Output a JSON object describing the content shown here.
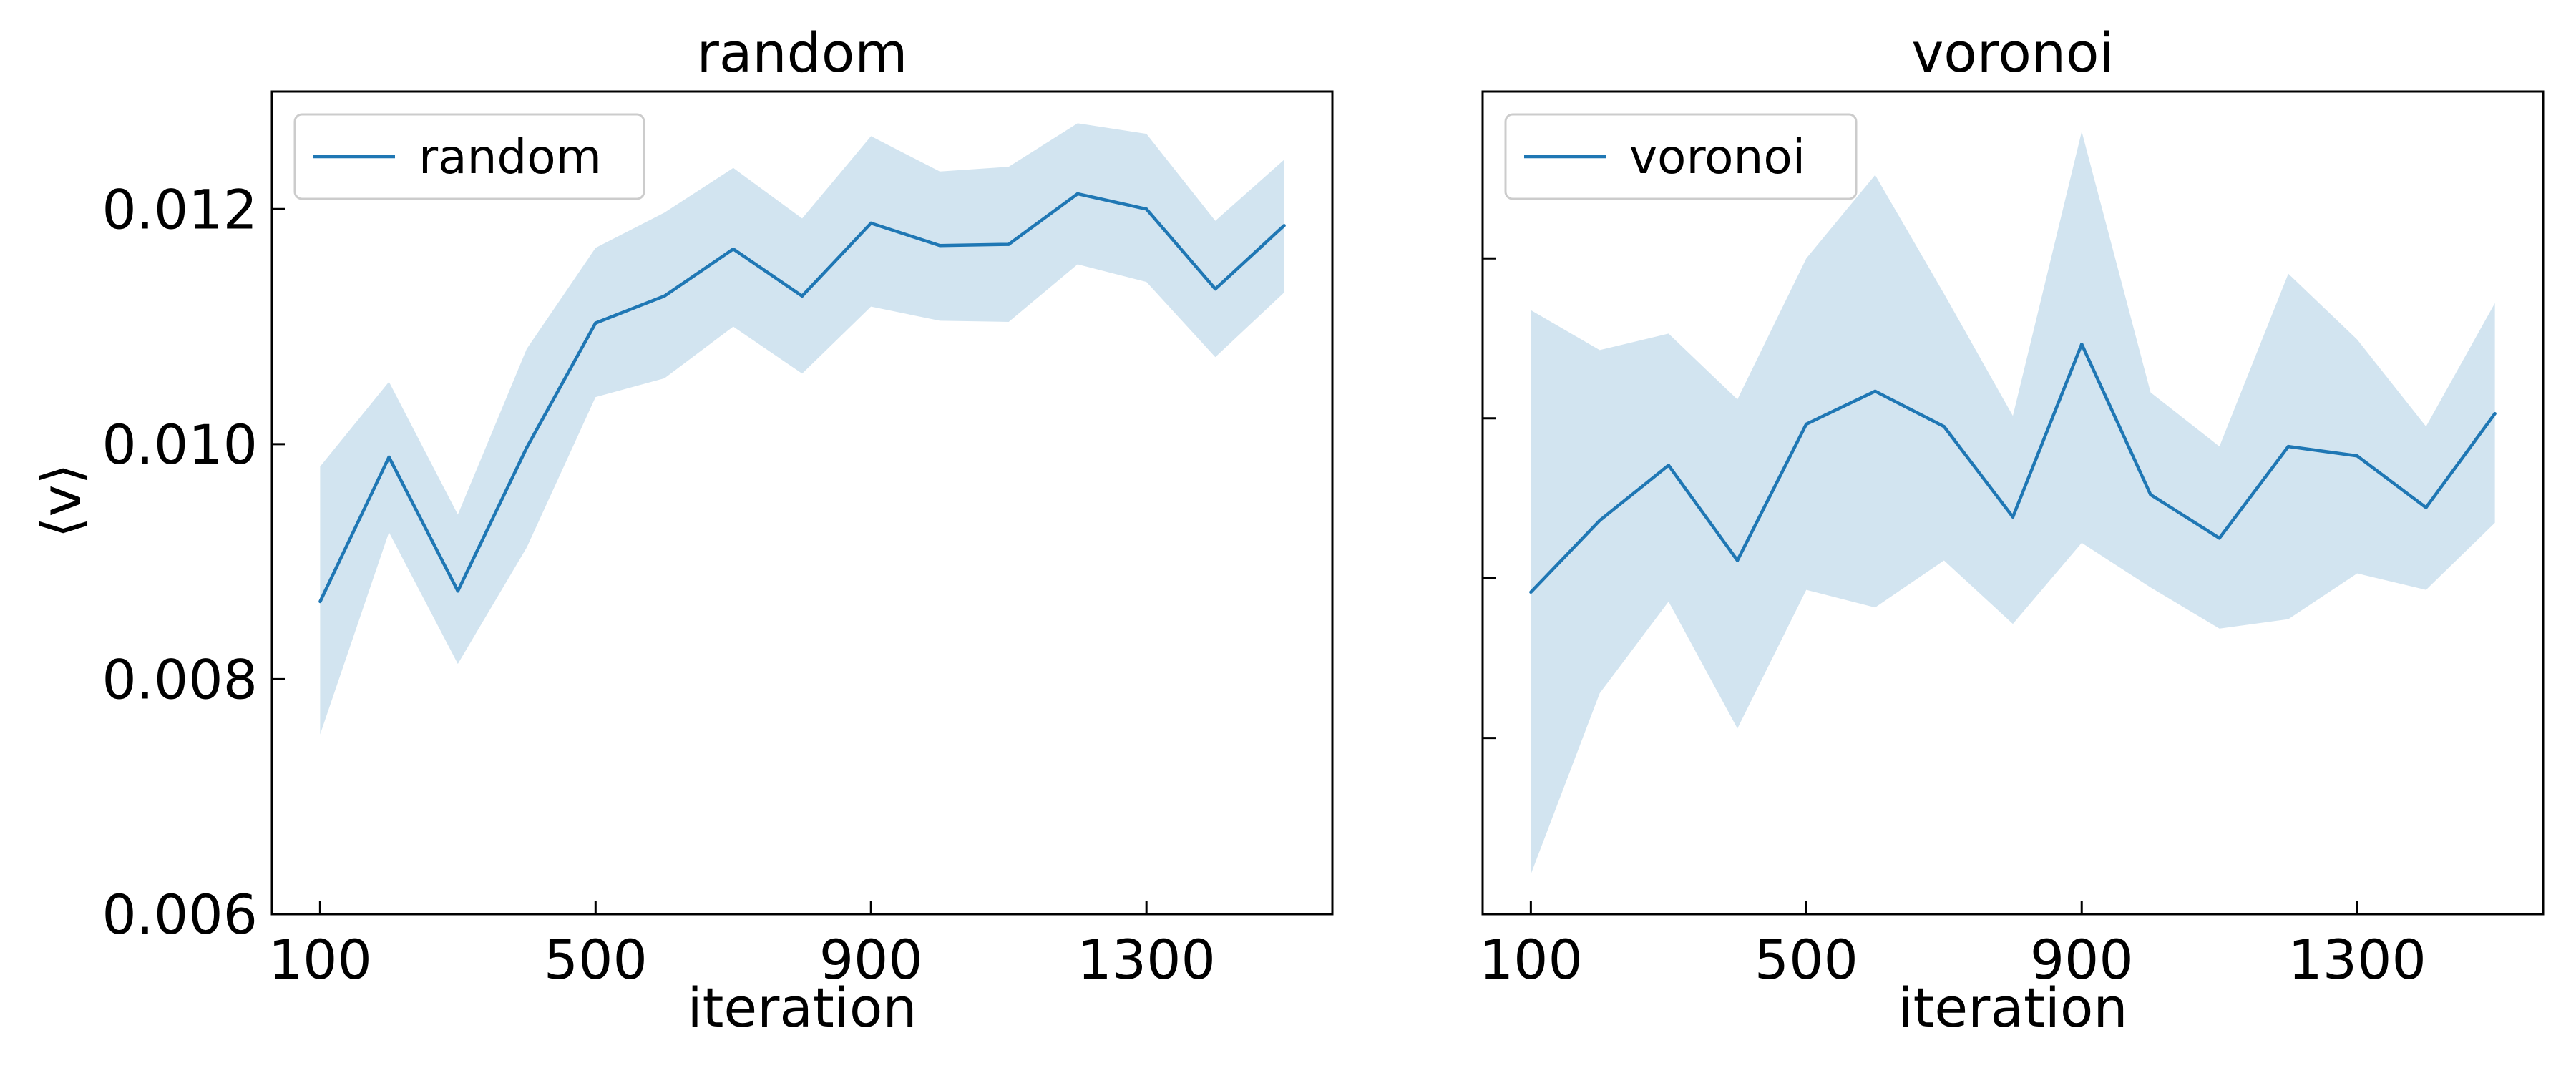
{
  "chart_data": [
    {
      "type": "line",
      "title": "random",
      "xlabel": "iteration",
      "ylabel": "⟨v⟩",
      "xlim": [
        30,
        1570
      ],
      "ylim": [
        0.006,
        0.013
      ],
      "xticks": [
        100,
        500,
        900,
        1300
      ],
      "xtick_labels": [
        "100",
        "500",
        "900",
        "1300"
      ],
      "yticks": [
        0.006,
        0.008,
        0.01,
        0.012
      ],
      "ytick_labels": [
        "0.006",
        "0.008",
        "0.010",
        "0.012"
      ],
      "legend": {
        "position": "upper-left",
        "entries": [
          "random"
        ]
      },
      "grid": false,
      "series": [
        {
          "name": "random",
          "color": "#1f77b4",
          "band_color": "#1f77b4",
          "band_opacity": 0.2,
          "x": [
            100,
            200,
            300,
            400,
            500,
            600,
            700,
            800,
            900,
            1000,
            1100,
            1200,
            1300,
            1400,
            1500
          ],
          "y": [
            0.00866,
            0.00989,
            0.00875,
            0.00997,
            0.01103,
            0.01126,
            0.01166,
            0.01126,
            0.01188,
            0.01169,
            0.0117,
            0.01213,
            0.012,
            0.01132,
            0.01186
          ],
          "y_lower": [
            0.00753,
            0.00925,
            0.00813,
            0.00912,
            0.0104,
            0.01056,
            0.011,
            0.0106,
            0.01117,
            0.01105,
            0.01104,
            0.01153,
            0.01138,
            0.01074,
            0.01129
          ],
          "y_upper": [
            0.00981,
            0.01053,
            0.0094,
            0.01081,
            0.01167,
            0.01197,
            0.01235,
            0.01192,
            0.01262,
            0.01232,
            0.01236,
            0.01273,
            0.01264,
            0.0119,
            0.01242
          ]
        }
      ]
    },
    {
      "type": "line",
      "title": "voronoi",
      "xlabel": "iteration",
      "ylabel": "",
      "xlim": [
        30,
        1570
      ],
      "ylim": [
        0.006,
        0.013
      ],
      "xticks": [
        100,
        500,
        900,
        1300
      ],
      "xtick_labels": [
        "100",
        "500",
        "900",
        "1300"
      ],
      "yticks": [
        0.0075,
        0.00886,
        0.01022,
        0.01158
      ],
      "ytick_labels": [],
      "legend": {
        "position": "upper-left",
        "entries": [
          "voronoi"
        ]
      },
      "grid": false,
      "series": [
        {
          "name": "voronoi",
          "color": "#1f77b4",
          "band_color": "#1f77b4",
          "band_opacity": 0.2,
          "x": [
            100,
            200,
            300,
            400,
            500,
            600,
            700,
            800,
            900,
            1000,
            1100,
            1200,
            1300,
            1400,
            1500
          ],
          "y": [
            0.00874,
            0.00935,
            0.00982,
            0.00901,
            0.01017,
            0.01045,
            0.01015,
            0.00938,
            0.01085,
            0.00957,
            0.0092,
            0.00998,
            0.0099,
            0.00946,
            0.01026
          ],
          "y_lower": [
            0.00634,
            0.00788,
            0.00866,
            0.00758,
            0.00876,
            0.00861,
            0.00901,
            0.00847,
            0.00916,
            0.00878,
            0.00843,
            0.00851,
            0.0089,
            0.00876,
            0.00933
          ],
          "y_upper": [
            0.01114,
            0.0108,
            0.01094,
            0.01038,
            0.01158,
            0.01229,
            0.01128,
            0.01024,
            0.01266,
            0.01044,
            0.00998,
            0.01145,
            0.01089,
            0.01015,
            0.0112
          ]
        }
      ]
    }
  ]
}
